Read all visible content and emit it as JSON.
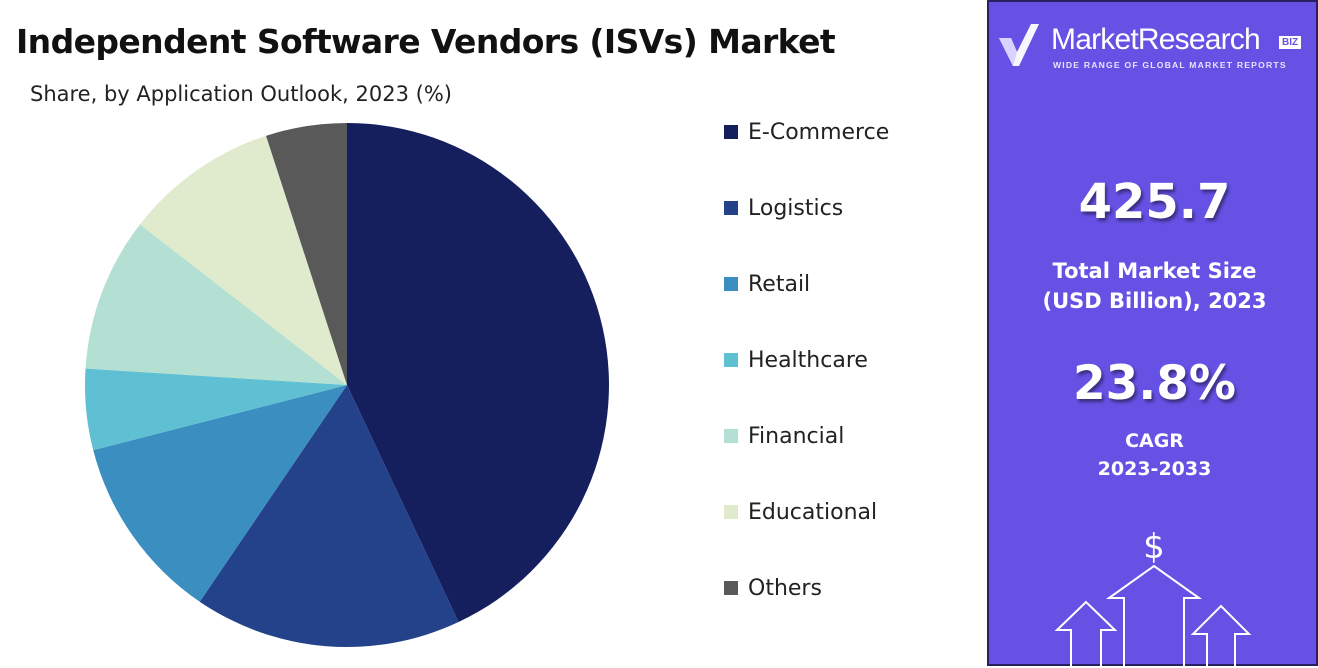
{
  "header": {
    "title": "Independent Software Vendors (ISVs) Market",
    "subtitle": "Share, by Application Outlook, 2023 (%)"
  },
  "brand": {
    "name": "MarketResearch",
    "badge": "BIZ",
    "tagline": "WIDE RANGE OF GLOBAL MARKET REPORTS",
    "accent_color": "#6552e5"
  },
  "stats": {
    "market_size_value": "425.7",
    "market_size_label_1": "Total Market Size",
    "market_size_label_2": "(USD Billion), 2023",
    "cagr_value": "23.8%",
    "cagr_label_1": "CAGR",
    "cagr_label_2": "2023-2033",
    "currency_symbol": "$"
  },
  "chart_data": {
    "type": "pie",
    "title": "Independent Software Vendors (ISVs) Market",
    "subtitle": "Share, by Application Outlook, 2023 (%)",
    "legend_position": "right",
    "start_angle": "top, clockwise",
    "slices": [
      {
        "label": "E-Commerce",
        "value": 43.0,
        "color": "#161f5e"
      },
      {
        "label": "Logistics",
        "value": 16.5,
        "color": "#23428a"
      },
      {
        "label": "Retail",
        "value": 11.5,
        "color": "#3b8ec0"
      },
      {
        "label": "Healthcare",
        "value": 5.0,
        "color": "#5fbfd3"
      },
      {
        "label": "Financial",
        "value": 9.5,
        "color": "#b3e0d2"
      },
      {
        "label": "Educational",
        "value": 9.5,
        "color": "#e0ebcd"
      },
      {
        "label": "Others",
        "value": 5.0,
        "color": "#595959"
      }
    ]
  }
}
